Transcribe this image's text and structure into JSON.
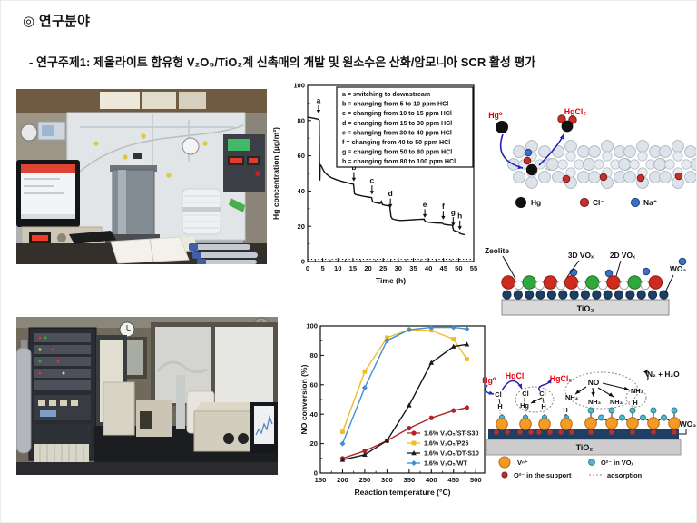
{
  "page": {
    "title": "◎ 연구분야",
    "subtitle": "- 연구주제1: 제올라이트 함유형 V₂O₅/TiO₂계 신촉매의 개발 및 원소수은 산화/암모니아 SCR 활성 평가"
  },
  "colors": {
    "red_label": "#e8000d",
    "arrow_blue": "#2222b8",
    "series_red": "#b22428",
    "series_yellow": "#f0bd27",
    "series_black": "#1a1a1a",
    "series_blue": "#3f8fd2",
    "vox3d_red": "#cf2a1e",
    "vox2d_green": "#2fa83c",
    "wo3_navy": "#1e3f63",
    "vanadium_orange": "#f59a23",
    "o_teal": "#55b7c9",
    "o_support_red": "#b5322c"
  },
  "chart_data": [
    {
      "id": "hg-concentration",
      "type": "line",
      "xlabel": "Time (h)",
      "ylabel": "Hg concentration (µg/m³)",
      "xlim": [
        0,
        55
      ],
      "ylim": [
        0,
        100
      ],
      "xticks": [
        0,
        5,
        10,
        15,
        20,
        25,
        30,
        35,
        40,
        45,
        50,
        55
      ],
      "yticks": [
        0,
        20,
        40,
        60,
        80,
        100
      ],
      "grid": false,
      "legend_position": "top box",
      "legend_lines": [
        "a = switching to downstream",
        "b = changing from 5 to 10 ppm HCl",
        "c = changing from 10 to 15 ppm HCl",
        "d = changing from 15 to 30 ppm HCl",
        "e = changing from 30 to 40 ppm HCl",
        "f = changing from 40 to 50 ppm HCl",
        "g = changing from 50 to 80 ppm HCl",
        "h = changing from 80 to 100 ppm HCl"
      ],
      "series": [
        {
          "color": "#111111",
          "width": 1.4,
          "points": [
            [
              0,
              82
            ],
            [
              1.5,
              81.5
            ],
            [
              3,
              81
            ],
            [
              3.7,
              80.5
            ],
            [
              3.85,
              80
            ],
            [
              3.95,
              55
            ],
            [
              4.05,
              46
            ],
            [
              4.15,
              55
            ],
            [
              4.6,
              54
            ],
            [
              5,
              52.5
            ],
            [
              5.5,
              51
            ],
            [
              6,
              50
            ],
            [
              7,
              48.5
            ],
            [
              8,
              47.5
            ],
            [
              9,
              46.8
            ],
            [
              10,
              46.2
            ],
            [
              11,
              45.7
            ],
            [
              12,
              45.2
            ],
            [
              13,
              44.8
            ],
            [
              14,
              44.3
            ],
            [
              15.2,
              43.8
            ],
            [
              15.5,
              38.5
            ],
            [
              16,
              38
            ],
            [
              17,
              37.6
            ],
            [
              18,
              37.2
            ],
            [
              19,
              36.9
            ],
            [
              20,
              36.6
            ],
            [
              21.2,
              36.3
            ],
            [
              21.5,
              34
            ],
            [
              22,
              33.6
            ],
            [
              23,
              33.2
            ],
            [
              24,
              32.9
            ],
            [
              24.4,
              34.2
            ],
            [
              24.8,
              32.3
            ],
            [
              25.5,
              32
            ],
            [
              26.5,
              31.7
            ],
            [
              27.2,
              31.4
            ],
            [
              27.6,
              25.5
            ],
            [
              28,
              24.3
            ],
            [
              29,
              23.7
            ],
            [
              30,
              23.4
            ],
            [
              31,
              23.3
            ],
            [
              32,
              23.4
            ],
            [
              33,
              23.5
            ],
            [
              34,
              23.6
            ],
            [
              35,
              23.7
            ],
            [
              36,
              23.8
            ],
            [
              37,
              23.9
            ],
            [
              38.6,
              24
            ],
            [
              38.9,
              22.8
            ],
            [
              39.5,
              22.4
            ],
            [
              40.5,
              22.2
            ],
            [
              41.5,
              22
            ],
            [
              42.5,
              21.9
            ],
            [
              43.5,
              21.8
            ],
            [
              44.7,
              21.7
            ],
            [
              45,
              21.2
            ],
            [
              46,
              20.9
            ],
            [
              47,
              20.7
            ],
            [
              47.9,
              20.5
            ],
            [
              48.3,
              17.8
            ],
            [
              49,
              17.2
            ],
            [
              50,
              16.8
            ],
            [
              50.4,
              16
            ],
            [
              51,
              15.6
            ],
            [
              52,
              15.2
            ]
          ]
        },
        {
          "color": "#111111",
          "width": 1,
          "dash": "1.2,2.6",
          "points": [
            [
              0,
              1.3
            ],
            [
              55,
              1.3
            ]
          ]
        }
      ],
      "annotations": [
        {
          "label": "a",
          "x": 3.6,
          "label_y": 90,
          "tip_y": 84
        },
        {
          "label": "b",
          "x": 15.3,
          "label_y": 52,
          "tip_y": 45.5
        },
        {
          "label": "c",
          "x": 21.3,
          "label_y": 44.5,
          "tip_y": 38
        },
        {
          "label": "d",
          "x": 27.4,
          "label_y": 37,
          "tip_y": 30.5
        },
        {
          "label": "e",
          "x": 38.8,
          "label_y": 31,
          "tip_y": 24.8
        },
        {
          "label": "f",
          "x": 44.9,
          "label_y": 30,
          "tip_y": 23.8
        },
        {
          "label": "g",
          "x": 48.2,
          "label_y": 26.5,
          "tip_y": 20
        },
        {
          "label": "h",
          "x": 50.4,
          "label_y": 24.5,
          "tip_y": 18
        }
      ]
    },
    {
      "id": "no-conversion",
      "type": "line",
      "xlabel": "Reaction temperature (°C)",
      "ylabel": "NO conversion (%)",
      "xlim": [
        150,
        520
      ],
      "ylim": [
        0,
        100
      ],
      "xticks": [
        150,
        200,
        250,
        300,
        350,
        400,
        450,
        500
      ],
      "yticks": [
        0,
        20,
        40,
        60,
        80,
        100
      ],
      "grid": false,
      "legend_position": "lower right",
      "x": [
        200,
        250,
        300,
        350,
        400,
        450,
        480
      ],
      "series": [
        {
          "name": "1.6% V₂O₅/ST-S30",
          "color": "#b22428",
          "marker": "circle",
          "y": [
            10,
            15,
            22,
            30.5,
            37.5,
            42.5,
            44.5
          ]
        },
        {
          "name": "1.6% V₂O₅/P25",
          "color": "#f0bd27",
          "marker": "square",
          "y": [
            28,
            69,
            92,
            97.5,
            97,
            91,
            77.5
          ]
        },
        {
          "name": "1.6% V₂O₅/DT-S10",
          "color": "#1a1a1a",
          "marker": "triangle",
          "y": [
            9,
            12.5,
            22,
            46,
            75,
            86,
            87.5
          ]
        },
        {
          "name": "1.6% V₂O₅/WT",
          "color": "#3f8fd2",
          "marker": "diamond",
          "y": [
            20,
            58,
            90,
            97.5,
            99,
            99,
            98
          ]
        }
      ]
    }
  ],
  "fig_hg_zeolite": {
    "hg0": "Hg⁰",
    "hgcl2": "HgCl₂",
    "legend": {
      "hg": "Hg",
      "cl": "Cl⁻",
      "na": "Na⁺"
    }
  },
  "fig_catalyst": {
    "zeolite": "Zeolite",
    "vox3d": "3D VOₓ",
    "vox2d": "2D VOₓ",
    "wo3": "WO₃",
    "tio2": "TiO₂"
  },
  "fig_mechanism": {
    "hg0": "Hg⁰",
    "hgcl": "HgCl",
    "hgcl2": "HgCl₂",
    "no": "NO",
    "n2h2o": "N₂ + H₂O",
    "nh3": "NH₃",
    "cl": "Cl",
    "h": "H",
    "hg": "Hg",
    "wo3": "WO₃",
    "tio2": "TiO₂",
    "legend": {
      "v": "Vⁿ⁺",
      "o_vox": "O²⁻ in VOₓ",
      "o_support": "O²⁻ in the support",
      "adsorption": "adsorption"
    }
  }
}
